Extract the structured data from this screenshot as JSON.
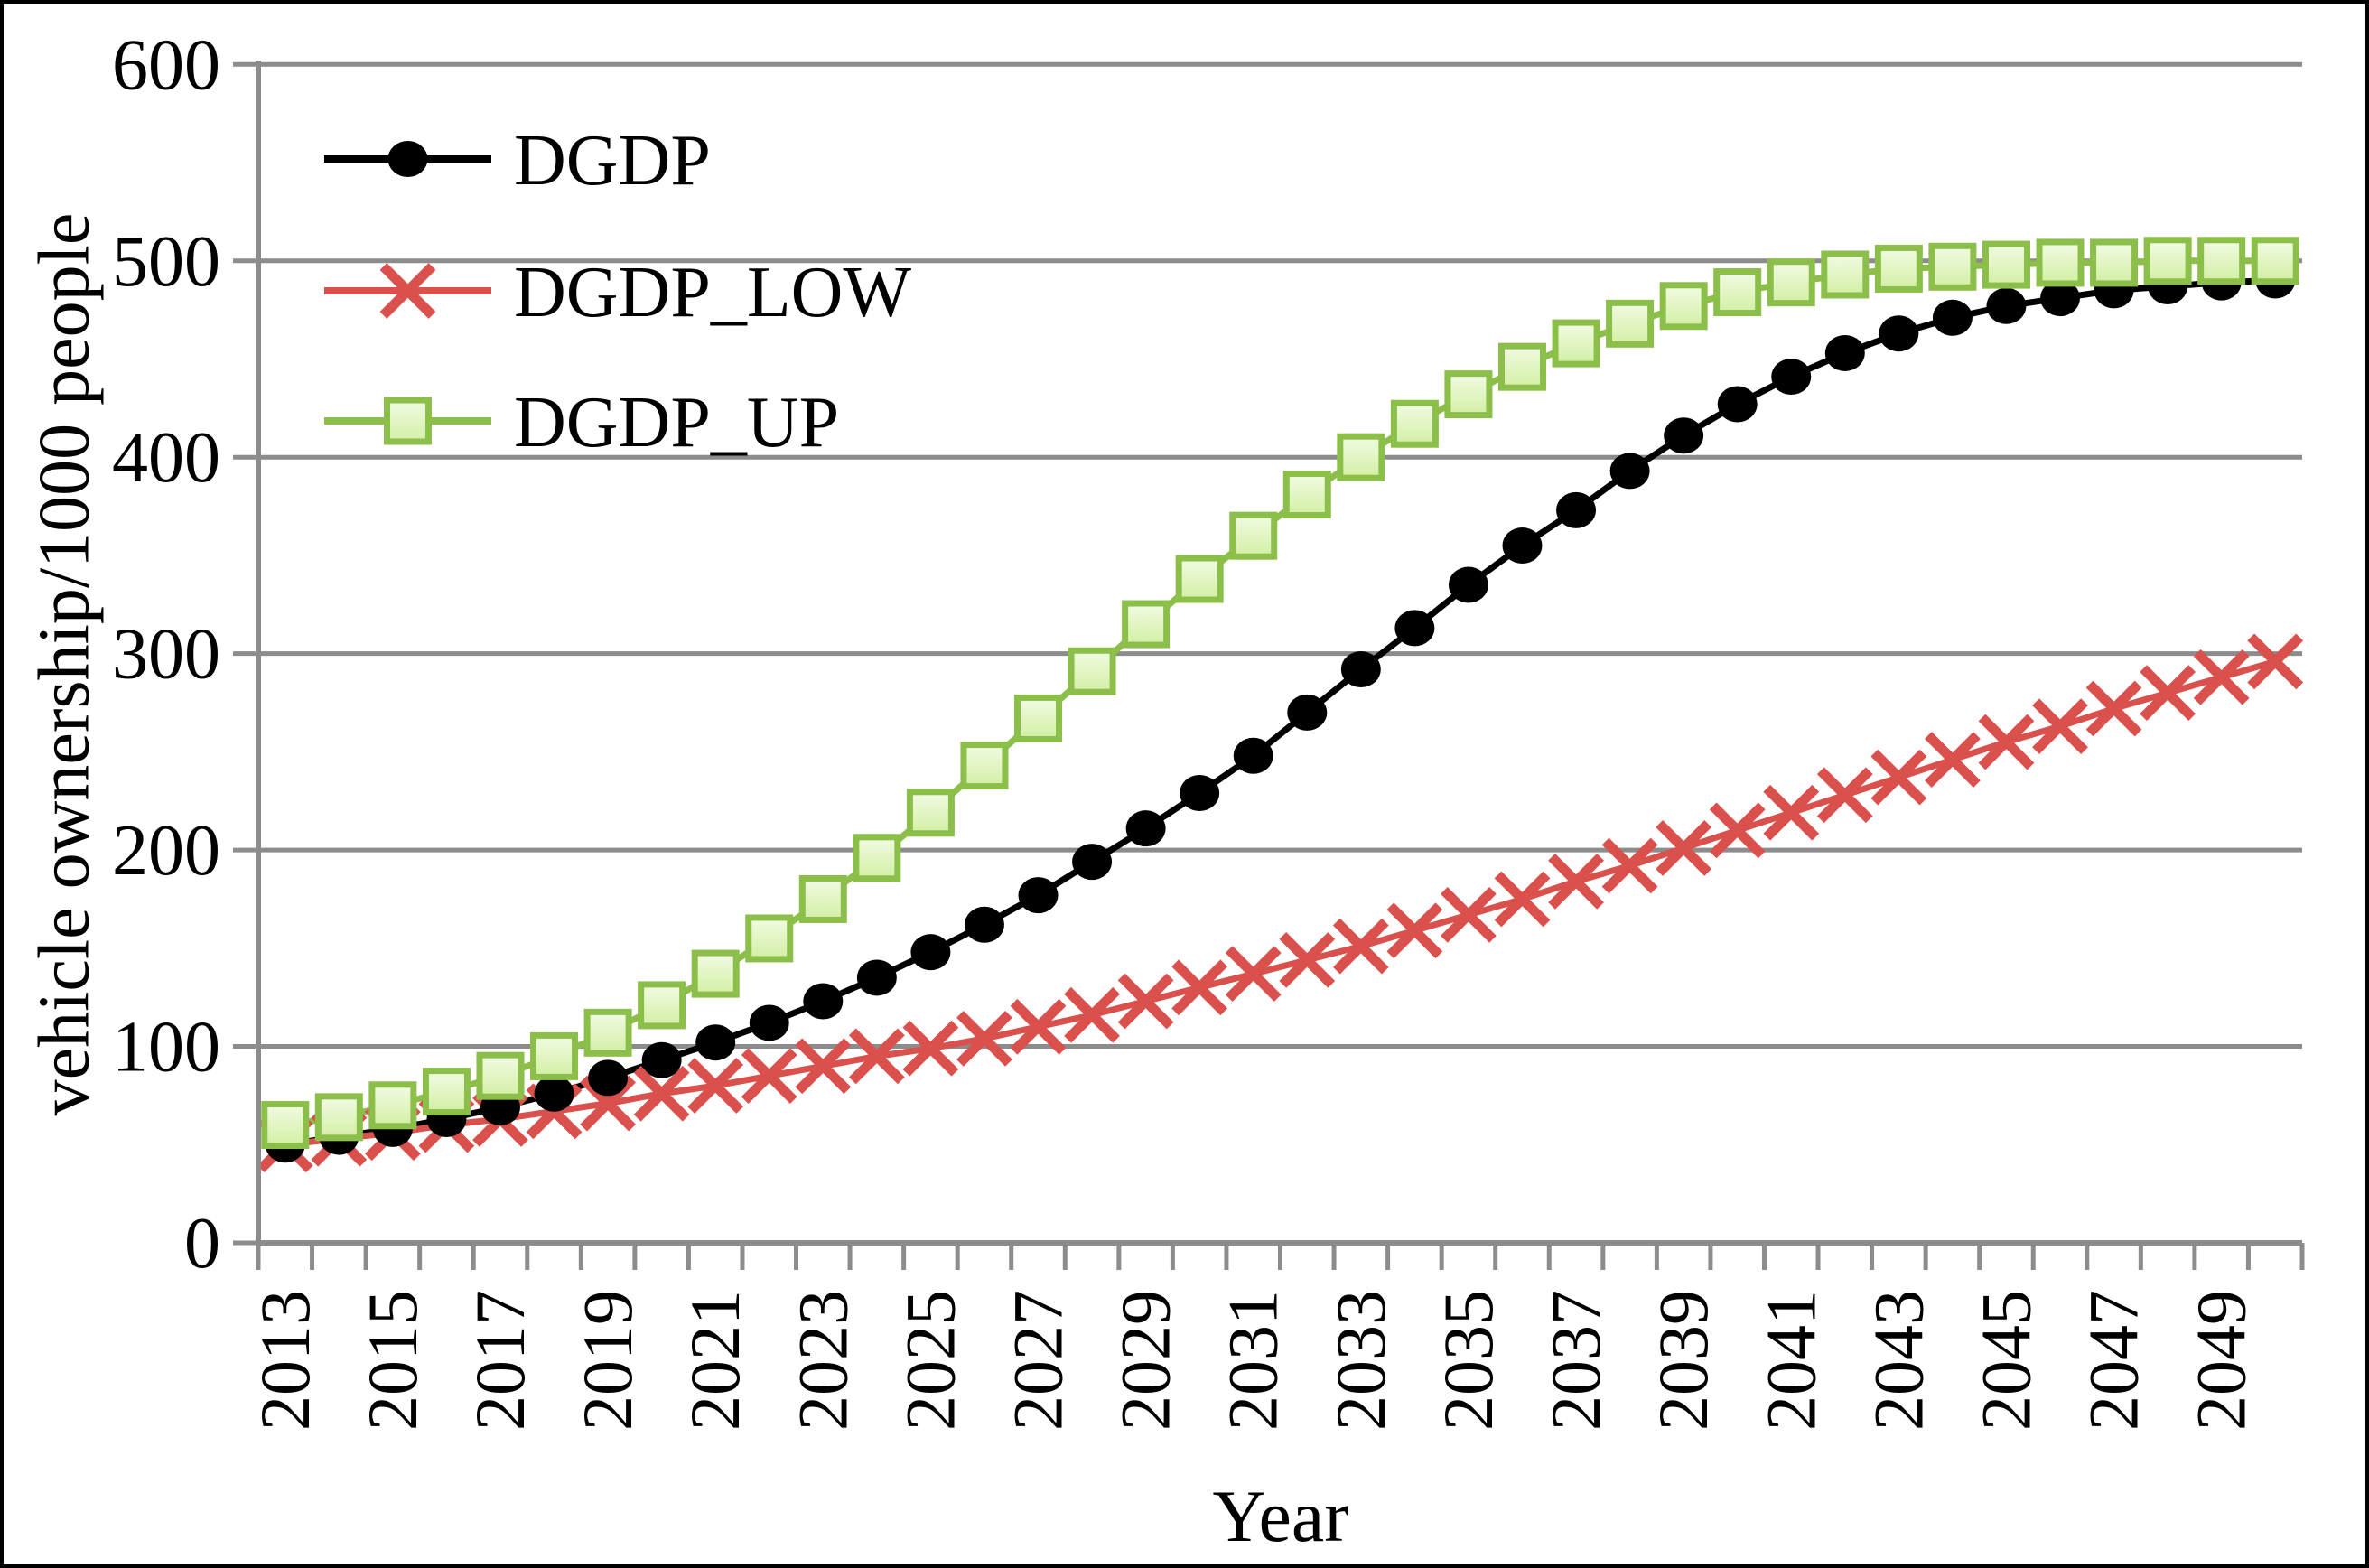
{
  "chart_data": {
    "type": "line",
    "title": "",
    "xlabel": "Year",
    "ylabel": "vehicle ownership/1000 people",
    "x": [
      2013,
      2014,
      2015,
      2016,
      2017,
      2018,
      2019,
      2020,
      2021,
      2022,
      2023,
      2024,
      2025,
      2026,
      2027,
      2028,
      2029,
      2030,
      2031,
      2032,
      2033,
      2034,
      2035,
      2036,
      2037,
      2038,
      2039,
      2040,
      2041,
      2042,
      2043,
      2044,
      2045,
      2046,
      2047,
      2048,
      2049,
      2050
    ],
    "x_tick_labels": [
      "2013",
      "2015",
      "2017",
      "2019",
      "2021",
      "2023",
      "2025",
      "2027",
      "2029",
      "2031",
      "2033",
      "2035",
      "2037",
      "2039",
      "2041",
      "2043",
      "2045",
      "2047",
      "2049"
    ],
    "ylim": [
      0,
      600
    ],
    "ytick_step": 100,
    "y_tick_labels": [
      "0",
      "100",
      "200",
      "300",
      "400",
      "500",
      "600"
    ],
    "grid": true,
    "legend_position": "top-left-inside",
    "axis_color": "#8C8C8C",
    "text_color": "#000000",
    "series": [
      {
        "name": "DGDP",
        "marker": "circle",
        "color": "#000000",
        "values": [
          50,
          54,
          58,
          63,
          69,
          76,
          84,
          93,
          102,
          112,
          123,
          135,
          148,
          162,
          177,
          194,
          211,
          229,
          248,
          270,
          292,
          313,
          335,
          355,
          373,
          393,
          411,
          427,
          441,
          453,
          463,
          471,
          477,
          481,
          485,
          487,
          489,
          490
        ]
      },
      {
        "name": "DGDP_LOW",
        "marker": "x",
        "color": "#D9504C",
        "values": [
          50,
          53,
          56,
          60,
          63,
          67,
          71,
          76,
          80,
          85,
          90,
          95,
          99,
          104,
          110,
          116,
          123,
          130,
          137,
          144,
          151,
          159,
          167,
          175,
          184,
          192,
          201,
          210,
          219,
          228,
          237,
          246,
          255,
          263,
          272,
          280,
          288,
          296
        ]
      },
      {
        "name": "DGDP_UP",
        "marker": "square",
        "color": "#8CBE4A",
        "marker_fill_top": "#F2FBE3",
        "marker_fill_bottom": "#D2EFA4",
        "values": [
          60,
          64,
          70,
          77,
          85,
          95,
          107,
          121,
          137,
          155,
          175,
          196,
          219,
          243,
          267,
          291,
          315,
          338,
          360,
          381,
          400,
          417,
          432,
          446,
          458,
          468,
          477,
          484,
          489,
          493,
          496,
          497,
          498,
          499,
          499,
          500,
          500,
          500
        ]
      }
    ]
  }
}
